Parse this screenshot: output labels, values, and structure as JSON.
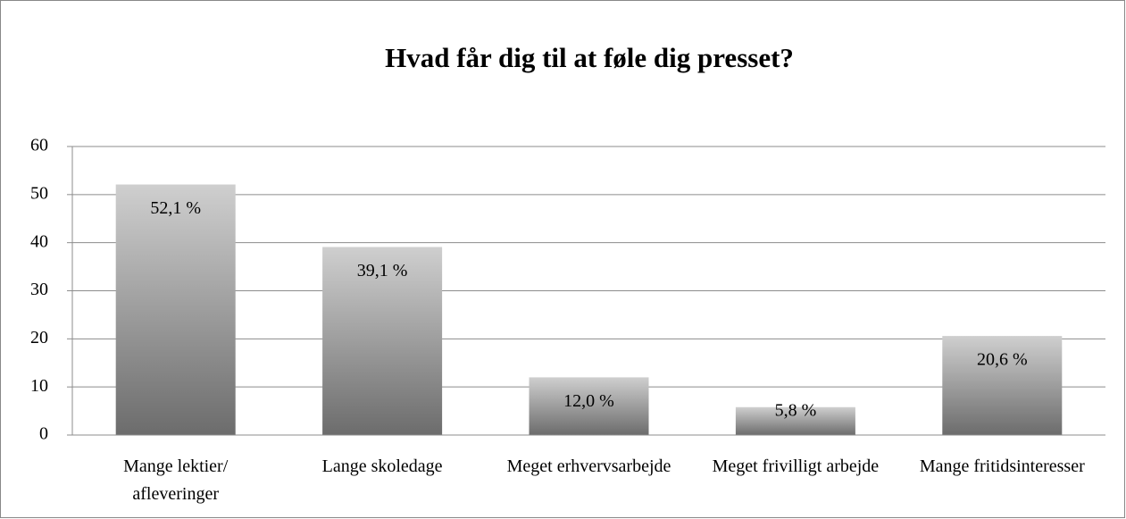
{
  "chart_data": {
    "type": "bar",
    "title": "Hvad får dig til at føle dig presset?",
    "categories": [
      "Mange lektier/ afleveringer",
      "Lange skoledage",
      "Meget erhvervsarbejde",
      "Meget frivilligt arbejde",
      "Mange fritidsinteresser"
    ],
    "values": [
      52.1,
      39.1,
      12.0,
      5.8,
      20.6
    ],
    "value_labels": [
      "52,1 %",
      "39,1 %",
      "12,0 %",
      "5,8 %",
      "20,6 %"
    ],
    "ylim": [
      0,
      60
    ],
    "yticks": [
      0,
      10,
      20,
      30,
      40,
      50,
      60
    ],
    "grid": true
  }
}
